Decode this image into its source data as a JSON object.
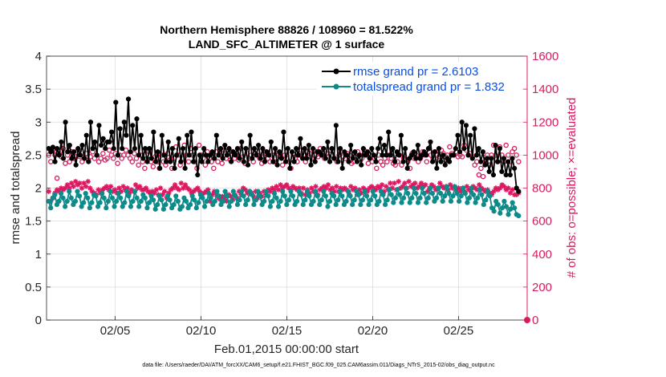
{
  "chart_data": {
    "type": "line",
    "title_line1": "Northern Hemisphere 88826 / 108960 = 81.522%",
    "title_line2": "LAND_SFC_ALTIMETER @ 1 surface",
    "xlabel": "Feb.01,2015 00:00:00 start",
    "ylabel_left": "rmse and totalspread",
    "ylabel_right": "# of obs: o=possible; ×=evaluated",
    "footer": "data file: /Users/raeder/DAI/ATM_forcXX/CAM6_setup/f.e21.FHIST_BGC.f09_025.CAM6assim.011/Diags_NTrS_2015-02/obs_diag_output.nc",
    "xlim": [
      1,
      29
    ],
    "ylim_left": [
      0,
      4
    ],
    "ylim_right": [
      0,
      1600
    ],
    "x_ticks": [
      5,
      10,
      15,
      20,
      25
    ],
    "x_tick_labels": [
      "02/05",
      "02/10",
      "02/15",
      "02/20",
      "02/25"
    ],
    "y_ticks_left": [
      "0",
      "0.5",
      "1",
      "1.5",
      "2",
      "2.5",
      "3",
      "3.5",
      "4"
    ],
    "y_ticks_right": [
      "0",
      "200",
      "400",
      "600",
      "800",
      "1000",
      "1200",
      "1400",
      "1600"
    ],
    "grid": true,
    "legend_position": "top-right",
    "colors": {
      "rmse": "#000000",
      "spread": "#0d8a8a",
      "obs": "#d81b60",
      "legend_text": "#0a4ee0"
    },
    "series": [
      {
        "name": "rmse grand pr = 2.6103",
        "axis": "left",
        "marker": "dot",
        "values": [
          2.6,
          2.55,
          2.62,
          2.4,
          2.6,
          2.5,
          2.7,
          2.45,
          3.0,
          2.55,
          2.65,
          2.45,
          2.55,
          2.35,
          2.6,
          2.5,
          2.65,
          2.45,
          2.8,
          2.4,
          3.0,
          2.6,
          2.7,
          2.5,
          2.95,
          2.65,
          2.75,
          2.6,
          2.7,
          2.7,
          2.85,
          2.6,
          3.3,
          2.5,
          2.9,
          2.6,
          3.0,
          2.8,
          3.35,
          2.55,
          2.95,
          2.6,
          3.05,
          2.5,
          2.8,
          2.45,
          2.6,
          2.4,
          2.6,
          2.45,
          2.85,
          2.4,
          2.55,
          2.3,
          2.8,
          2.5,
          2.4,
          2.7,
          2.4,
          2.6,
          2.3,
          2.5,
          2.75,
          2.4,
          2.6,
          2.3,
          2.8,
          2.5,
          2.85,
          2.4,
          2.6,
          2.2,
          2.5,
          2.4,
          2.6,
          2.5,
          2.4,
          2.5,
          2.55,
          2.45,
          2.8,
          2.5,
          2.6,
          2.45,
          2.65,
          2.5,
          2.6,
          2.4,
          2.55,
          2.5,
          2.6,
          2.45,
          2.7,
          2.4,
          2.6,
          2.35,
          2.8,
          2.45,
          2.6,
          2.5,
          2.65,
          2.45,
          2.6,
          2.4,
          2.55,
          2.5,
          2.7,
          2.4,
          2.6,
          2.35,
          2.55,
          2.45,
          2.85,
          2.4,
          2.6,
          2.3,
          2.55,
          2.4,
          2.6,
          2.5,
          2.75,
          2.45,
          2.6,
          2.45,
          2.65,
          2.35,
          2.6,
          2.4,
          2.55,
          2.55,
          2.5,
          2.6,
          2.45,
          2.7,
          2.4,
          2.6,
          2.45,
          2.95,
          2.4,
          2.6,
          2.3,
          2.55,
          2.5,
          2.4,
          2.65,
          2.45,
          2.55,
          2.4,
          2.5,
          2.35,
          2.6,
          2.5,
          2.55,
          2.45,
          2.6,
          2.5,
          2.4,
          2.6,
          2.75,
          2.5,
          2.65,
          2.5,
          2.85,
          2.5,
          2.6,
          2.4,
          2.55,
          2.5,
          2.8,
          2.4,
          2.6,
          2.3,
          2.45,
          2.5,
          2.55,
          2.45,
          2.65,
          2.45,
          2.5,
          2.55,
          2.5,
          2.6,
          2.7,
          2.4,
          2.55,
          2.3,
          2.6,
          2.4,
          2.5,
          2.35,
          2.45,
          2.4,
          2.5,
          2.5,
          2.6,
          2.8,
          2.55,
          3.0,
          2.6,
          2.95,
          2.5,
          2.8,
          2.45,
          2.9,
          2.5,
          2.6,
          2.4,
          2.55,
          2.35,
          2.45,
          2.25,
          2.45,
          2.2,
          2.65,
          2.4,
          2.6,
          2.25,
          2.45,
          2.2,
          2.4,
          2.2,
          2.45,
          2.3,
          2.0,
          1.95
        ]
      },
      {
        "name": "totalspread grand pr = 1.832",
        "axis": "left",
        "marker": "dot",
        "values": [
          1.8,
          1.7,
          1.85,
          1.9,
          1.75,
          1.8,
          1.92,
          1.85,
          1.72,
          1.8,
          1.95,
          1.85,
          1.75,
          1.8,
          1.95,
          1.88,
          1.72,
          1.78,
          1.92,
          1.85,
          1.7,
          1.78,
          1.9,
          1.88,
          1.72,
          1.78,
          1.92,
          1.85,
          1.7,
          1.8,
          1.95,
          1.85,
          1.72,
          1.8,
          1.92,
          1.85,
          1.72,
          1.78,
          1.95,
          1.88,
          1.72,
          1.8,
          1.95,
          1.85,
          1.72,
          1.8,
          1.9,
          1.85,
          1.7,
          1.78,
          1.88,
          1.82,
          1.68,
          1.75,
          1.88,
          1.82,
          1.68,
          1.75,
          1.88,
          1.82,
          1.7,
          1.75,
          1.88,
          1.8,
          1.68,
          1.72,
          1.85,
          1.8,
          1.7,
          1.75,
          1.88,
          1.82,
          1.7,
          1.78,
          1.9,
          1.85,
          1.72,
          1.8,
          1.92,
          1.85,
          1.75,
          1.8,
          1.95,
          1.88,
          1.75,
          1.8,
          1.95,
          1.88,
          1.72,
          1.8,
          1.95,
          1.88,
          1.75,
          1.82,
          1.95,
          1.88,
          1.75,
          1.82,
          1.95,
          1.9,
          1.75,
          1.82,
          1.95,
          1.88,
          1.75,
          1.8,
          1.95,
          1.88,
          1.72,
          1.8,
          1.92,
          1.85,
          1.72,
          1.8,
          1.95,
          1.88,
          1.75,
          1.82,
          1.95,
          1.88,
          1.75,
          1.8,
          1.95,
          1.9,
          1.75,
          1.82,
          1.95,
          1.88,
          1.75,
          1.8,
          1.95,
          1.88,
          1.75,
          1.82,
          1.95,
          1.88,
          1.72,
          1.8,
          1.92,
          1.88,
          1.75,
          1.82,
          1.95,
          1.88,
          1.75,
          1.8,
          1.95,
          1.88,
          1.75,
          1.82,
          1.95,
          1.9,
          1.75,
          1.82,
          1.95,
          1.88,
          1.75,
          1.82,
          1.95,
          1.88,
          1.75,
          1.8,
          1.95,
          1.9,
          1.75,
          1.82,
          1.98,
          1.9,
          1.78,
          1.85,
          1.98,
          1.9,
          1.78,
          1.85,
          2.0,
          1.92,
          1.78,
          1.85,
          2.0,
          1.92,
          1.78,
          1.85,
          2.0,
          1.92,
          1.78,
          1.85,
          2.0,
          1.92,
          1.8,
          1.85,
          2.0,
          1.92,
          1.8,
          1.88,
          2.02,
          1.92,
          1.8,
          1.88,
          2.02,
          1.92,
          1.8,
          1.88,
          2.0,
          1.92,
          1.78,
          1.85,
          2.0,
          1.9,
          1.78,
          1.85,
          1.98,
          1.9,
          1.75,
          1.82,
          1.95,
          1.88,
          1.7,
          1.65,
          1.8,
          1.75,
          1.62,
          1.7,
          1.8,
          1.72,
          1.6,
          1.68,
          1.78,
          1.7,
          1.6,
          1.58
        ]
      },
      {
        "name": "possible",
        "axis": "right",
        "marker": "circle",
        "values": [
          1000,
          960,
          1030,
          1000,
          860,
          1010,
          990,
          1040,
          950,
          1000,
          960,
          1020,
          980,
          990,
          1030,
          990,
          960,
          990,
          1010,
          970,
          990,
          1020,
          980,
          1000,
          960,
          980,
          1010,
          970,
          980,
          1030,
          1000,
          980,
          1010,
          950,
          1000,
          980,
          1000,
          1030,
          1000,
          980,
          960,
          1010,
          980,
          940,
          1000,
          960,
          920,
          980,
          1020,
          960,
          930,
          990,
          960,
          920,
          1000,
          960,
          940,
          1010,
          970,
          920,
          980,
          1050,
          1000,
          940,
          980,
          1060,
          1000,
          960,
          1040,
          1000,
          960,
          920,
          1060,
          1000,
          980,
          940,
          1020,
          980,
          960,
          920,
          1020,
          960,
          1000,
          950,
          1030,
          980,
          1010,
          970,
          1020,
          980,
          1000,
          970,
          1040,
          990,
          950,
          1010,
          980,
          1000,
          960,
          1010,
          1000,
          980,
          950,
          990,
          1020,
          980,
          960,
          1000,
          960,
          1010,
          1000,
          990,
          940,
          1000,
          980,
          960,
          920,
          1010,
          980,
          960,
          1000,
          1030,
          1000,
          960,
          1020,
          1010,
          980,
          1030,
          1000,
          990,
          1040,
          1000,
          980,
          1010,
          990,
          1030,
          1000,
          980,
          960,
          1000,
          1020,
          990,
          980,
          1010,
          1000,
          950,
          960,
          990,
          1020,
          1000,
          980,
          1030,
          1000,
          950,
          1000,
          960,
          980,
          920,
          1000,
          960,
          940,
          980,
          960,
          1000,
          980,
          950,
          940,
          960,
          1000,
          940,
          980,
          970,
          960,
          920,
          1010,
          980,
          1000,
          960,
          980,
          1020,
          1000,
          960,
          1040,
          1000,
          980,
          1020,
          1000,
          990,
          1030,
          1010,
          990,
          1000,
          1050,
          1010,
          1000,
          1020,
          990,
          1000,
          990,
          1060,
          1030,
          1000,
          1010,
          990,
          940,
          960,
          880,
          920,
          870,
          960,
          1000,
          940,
          1000,
          1060,
          1000,
          960,
          1050,
          1000,
          960,
          1060,
          1000,
          960,
          1020,
          1040,
          1000,
          960
        ]
      },
      {
        "name": "evaluated",
        "axis": "right",
        "marker": "x",
        "values": [
          780,
          720,
          740,
          770,
          790,
          780,
          800,
          790,
          800,
          820,
          800,
          830,
          810,
          840,
          820,
          830,
          800,
          830,
          810,
          840,
          800,
          780,
          770,
          760,
          790,
          770,
          790,
          800,
          810,
          790,
          810,
          780,
          790,
          770,
          800,
          780,
          810,
          790,
          800,
          770,
          790,
          780,
          820,
          800,
          810,
          790,
          790,
          800,
          780,
          770,
          780,
          770,
          790,
          760,
          800,
          760,
          780,
          740,
          770,
          790,
          800,
          820,
          800,
          790,
          830,
          800,
          820,
          800,
          790,
          770,
          780,
          790,
          800,
          780,
          760,
          770,
          780,
          790,
          720,
          760,
          780,
          760,
          740,
          730,
          750,
          740,
          720,
          760,
          750,
          730,
          760,
          740,
          780,
          760,
          800,
          790,
          770,
          780,
          770,
          750,
          780,
          740,
          770,
          750,
          780,
          760,
          790,
          780,
          800,
          790,
          810,
          790,
          820,
          800,
          810,
          820,
          800,
          790,
          810,
          800,
          790,
          800,
          770,
          800,
          760,
          790,
          770,
          800,
          780,
          810,
          760,
          790,
          800,
          810,
          800,
          820,
          790,
          800,
          780,
          810,
          780,
          800,
          790,
          800,
          790,
          770,
          810,
          790,
          800,
          760,
          790,
          770,
          800,
          790,
          780,
          800,
          810,
          800,
          790,
          810,
          800,
          820,
          780,
          810,
          790,
          830,
          800,
          830,
          790,
          840,
          800,
          810,
          830,
          800,
          840,
          810,
          820,
          830,
          800,
          810,
          830,
          810,
          820,
          780,
          800,
          820,
          810,
          790,
          800,
          830,
          810,
          800,
          810,
          790,
          820,
          800,
          810,
          790,
          800,
          780,
          800,
          780,
          810,
          790,
          780,
          810,
          800,
          790,
          820,
          800,
          790,
          780,
          790,
          770,
          760,
          780,
          800,
          790,
          800,
          820,
          810,
          790,
          800,
          770,
          790,
          760,
          760,
          770
        ]
      }
    ]
  }
}
